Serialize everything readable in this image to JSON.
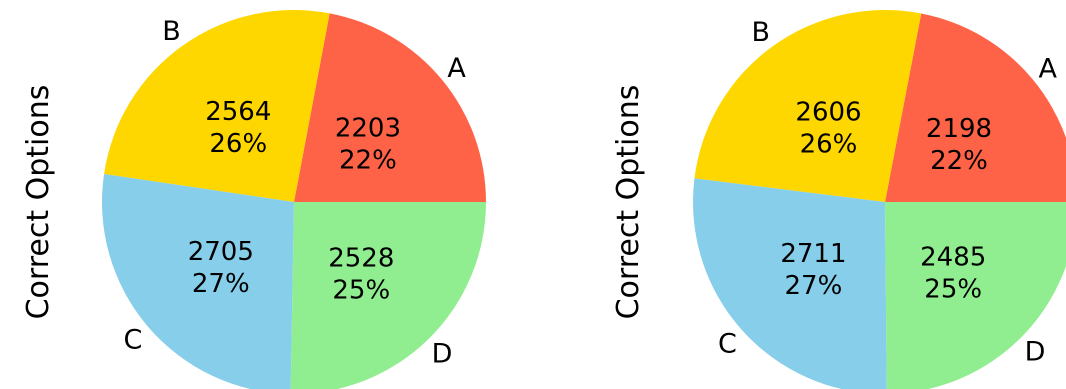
{
  "chart_data": [
    {
      "type": "pie",
      "ylabel": "Correct Options",
      "title": "",
      "slices": [
        {
          "label": "A",
          "value": 2203,
          "percent": "22%",
          "color": "#FF6347"
        },
        {
          "label": "B",
          "value": 2564,
          "percent": "26%",
          "color": "#FFD700"
        },
        {
          "label": "C",
          "value": 2705,
          "percent": "27%",
          "color": "#87CEEB"
        },
        {
          "label": "D",
          "value": 2528,
          "percent": "25%",
          "color": "#90EE90"
        }
      ]
    },
    {
      "type": "pie",
      "ylabel": "Correct Options",
      "title": "",
      "slices": [
        {
          "label": "A",
          "value": 2198,
          "percent": "22%",
          "color": "#FF6347"
        },
        {
          "label": "B",
          "value": 2606,
          "percent": "26%",
          "color": "#FFD700"
        },
        {
          "label": "C",
          "value": 2711,
          "percent": "27%",
          "color": "#87CEEB"
        },
        {
          "label": "D",
          "value": 2485,
          "percent": "25%",
          "color": "#90EE90"
        }
      ]
    }
  ]
}
